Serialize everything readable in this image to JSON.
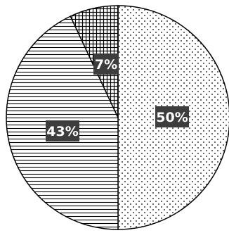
{
  "chart_data": {
    "type": "pie",
    "start_angle_deg": 0,
    "direction": "clockwise",
    "legend": "none",
    "slices": [
      {
        "value": 50,
        "label": "50%",
        "pattern": "dots"
      },
      {
        "value": 43,
        "label": "43%",
        "pattern": "horizontal-lines"
      },
      {
        "value": 7,
        "label": "7%",
        "pattern": "grid"
      }
    ],
    "colors": {
      "outline": "#000000",
      "label_bg": "#3d3d3d",
      "label_text": "#ffffff",
      "background": "#ffffff"
    }
  }
}
